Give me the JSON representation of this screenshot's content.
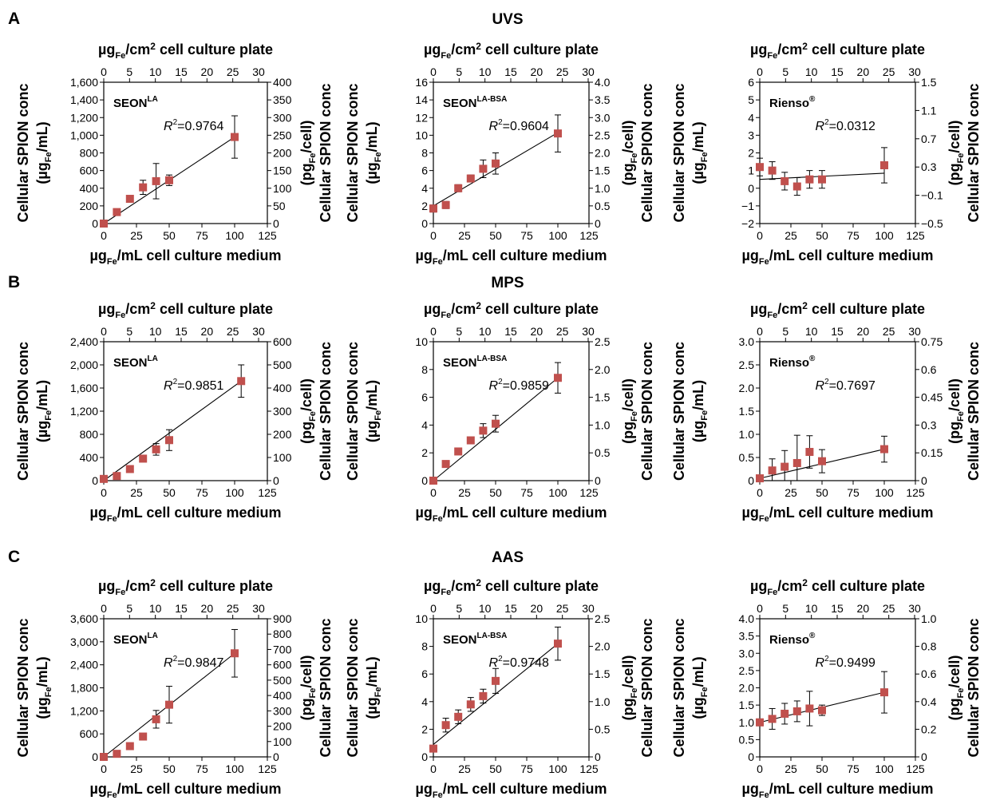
{
  "chart_data": [
    {
      "row": 0,
      "col": 0,
      "type": "scatter",
      "panel_letter": "A",
      "row_title": "UVS",
      "label_main": "SEON",
      "label_sup": "LA",
      "r2_label": "R",
      "r2_value": "=0.9764",
      "xlim": [
        0,
        125
      ],
      "xticks": [
        0,
        25,
        50,
        75,
        100,
        125
      ],
      "xtick_labels": [
        "0",
        "25",
        "50",
        "75",
        "100",
        "125"
      ],
      "ylim": [
        0,
        1600
      ],
      "yticks": [
        0,
        200,
        400,
        600,
        800,
        1000,
        1200,
        1400,
        1600
      ],
      "ytick_labels": [
        "0",
        "200",
        "400",
        "600",
        "800",
        "1,000",
        "1,200",
        "1,400",
        "1,600"
      ],
      "top_ticks": [
        "0",
        "5",
        "10",
        "15",
        "20",
        "25",
        "30"
      ],
      "right_ticks": [
        "0",
        "50",
        "100",
        "150",
        "200",
        "250",
        "300",
        "350",
        "400"
      ],
      "trend": [
        [
          0,
          0
        ],
        [
          100,
          980
        ]
      ],
      "points": [
        {
          "x": 0,
          "y": 0,
          "err": 0
        },
        {
          "x": 10,
          "y": 130,
          "err": 0
        },
        {
          "x": 20,
          "y": 280,
          "err": 20
        },
        {
          "x": 30,
          "y": 410,
          "err": 80
        },
        {
          "x": 40,
          "y": 480,
          "err": 200
        },
        {
          "x": 50,
          "y": 490,
          "err": 60
        },
        {
          "x": 100,
          "y": 980,
          "err": 240
        }
      ]
    },
    {
      "row": 0,
      "col": 1,
      "type": "scatter",
      "label_main": "SEON",
      "label_sup": "LA-BSA",
      "r2_label": "R",
      "r2_value": "=0.9604",
      "xlim": [
        0,
        125
      ],
      "xticks": [
        0,
        25,
        50,
        75,
        100,
        125
      ],
      "xtick_labels": [
        "0",
        "25",
        "50",
        "75",
        "100",
        "125"
      ],
      "ylim": [
        0,
        16
      ],
      "yticks": [
        0,
        2,
        4,
        6,
        8,
        10,
        12,
        14,
        16
      ],
      "ytick_labels": [
        "0",
        "2",
        "4",
        "6",
        "8",
        "10",
        "12",
        "14",
        "16"
      ],
      "top_ticks": [
        "0",
        "5",
        "10",
        "15",
        "20",
        "25",
        "30"
      ],
      "right_ticks": [
        "0",
        "0.5",
        "1.0",
        "1.5",
        "2.0",
        "2.5",
        "3.0",
        "3.5",
        "4.0"
      ],
      "trend": [
        [
          0,
          2.0
        ],
        [
          100,
          10.3
        ]
      ],
      "points": [
        {
          "x": 0,
          "y": 1.7,
          "err": 0.4
        },
        {
          "x": 10,
          "y": 2.1,
          "err": 0.4
        },
        {
          "x": 20,
          "y": 4.0,
          "err": 0.4
        },
        {
          "x": 30,
          "y": 5.1,
          "err": 0.4
        },
        {
          "x": 40,
          "y": 6.2,
          "err": 1.0
        },
        {
          "x": 50,
          "y": 6.8,
          "err": 1.2
        },
        {
          "x": 100,
          "y": 10.2,
          "err": 2.1
        }
      ]
    },
    {
      "row": 0,
      "col": 2,
      "type": "scatter",
      "label_main": "Rienso",
      "label_sup": "®",
      "r2_label": "R",
      "r2_value": "=0.0312",
      "xlim": [
        0,
        125
      ],
      "xticks": [
        0,
        25,
        50,
        75,
        100,
        125
      ],
      "xtick_labels": [
        "0",
        "25",
        "50",
        "75",
        "100",
        "125"
      ],
      "ylim": [
        -2,
        6
      ],
      "yticks": [
        -2,
        -1,
        0,
        1,
        2,
        3,
        4,
        5,
        6
      ],
      "ytick_labels": [
        "−2",
        "−1",
        "0",
        "1",
        "2",
        "3",
        "4",
        "5",
        "6"
      ],
      "top_ticks": [
        "0",
        "5",
        "10",
        "15",
        "20",
        "25",
        "30"
      ],
      "right_ticks": [
        "−0.5",
        "−0.1",
        "0.3",
        "0.7",
        "1.1",
        "1.5"
      ],
      "trend": [
        [
          0,
          0.5
        ],
        [
          100,
          0.85
        ]
      ],
      "points": [
        {
          "x": 0,
          "y": 1.2,
          "err": 0.5
        },
        {
          "x": 10,
          "y": 1.0,
          "err": 0.5
        },
        {
          "x": 20,
          "y": 0.4,
          "err": 0.5
        },
        {
          "x": 30,
          "y": 0.1,
          "err": 0.5
        },
        {
          "x": 40,
          "y": 0.5,
          "err": 0.5
        },
        {
          "x": 50,
          "y": 0.5,
          "err": 0.5
        },
        {
          "x": 100,
          "y": 1.3,
          "err": 1.0
        }
      ]
    },
    {
      "row": 1,
      "col": 0,
      "type": "scatter",
      "panel_letter": "B",
      "row_title": "MPS",
      "label_main": "SEON",
      "label_sup": "LA",
      "r2_label": "R",
      "r2_value": "=0.9851",
      "xlim": [
        0,
        125
      ],
      "xticks": [
        0,
        25,
        50,
        75,
        100,
        125
      ],
      "xtick_labels": [
        "0",
        "25",
        "50",
        "75",
        "100",
        "125"
      ],
      "ylim": [
        0,
        2400
      ],
      "yticks": [
        0,
        400,
        800,
        1200,
        1600,
        2000,
        2400
      ],
      "ytick_labels": [
        "0",
        "400",
        "800",
        "1,200",
        "1,600",
        "2,000",
        "2,400"
      ],
      "top_ticks": [
        "0",
        "5",
        "10",
        "15",
        "20",
        "25",
        "30"
      ],
      "right_ticks": [
        "0",
        "100",
        "200",
        "300",
        "400",
        "500",
        "600"
      ],
      "trend": [
        [
          0,
          0
        ],
        [
          105,
          1720
        ]
      ],
      "points": [
        {
          "x": 0,
          "y": 30,
          "err": 0
        },
        {
          "x": 10,
          "y": 80,
          "err": 0
        },
        {
          "x": 20,
          "y": 200,
          "err": 0
        },
        {
          "x": 30,
          "y": 380,
          "err": 40
        },
        {
          "x": 40,
          "y": 540,
          "err": 100
        },
        {
          "x": 50,
          "y": 700,
          "err": 180
        },
        {
          "x": 105,
          "y": 1720,
          "err": 280
        }
      ]
    },
    {
      "row": 1,
      "col": 1,
      "type": "scatter",
      "label_main": "SEON",
      "label_sup": "LA-BSA",
      "r2_label": "R",
      "r2_value": "=0.9859",
      "xlim": [
        0,
        125
      ],
      "xticks": [
        0,
        25,
        50,
        75,
        100,
        125
      ],
      "xtick_labels": [
        "0",
        "25",
        "50",
        "75",
        "100",
        "125"
      ],
      "ylim": [
        0,
        10
      ],
      "yticks": [
        0,
        2,
        4,
        6,
        8,
        10
      ],
      "ytick_labels": [
        "0",
        "2",
        "4",
        "6",
        "8",
        "10"
      ],
      "top_ticks": [
        "0",
        "5",
        "10",
        "15",
        "20",
        "25",
        "30"
      ],
      "right_ticks": [
        "0",
        "0.5",
        "1.0",
        "1.5",
        "2.0",
        "2.5"
      ],
      "trend": [
        [
          0,
          0
        ],
        [
          100,
          7.4
        ]
      ],
      "points": [
        {
          "x": 0,
          "y": 0,
          "err": 0
        },
        {
          "x": 10,
          "y": 1.2,
          "err": 0.1
        },
        {
          "x": 20,
          "y": 2.1,
          "err": 0.1
        },
        {
          "x": 30,
          "y": 2.9,
          "err": 0.2
        },
        {
          "x": 40,
          "y": 3.6,
          "err": 0.5
        },
        {
          "x": 50,
          "y": 4.1,
          "err": 0.6
        },
        {
          "x": 100,
          "y": 7.4,
          "err": 1.1
        }
      ]
    },
    {
      "row": 1,
      "col": 2,
      "type": "scatter",
      "label_main": "Rienso",
      "label_sup": "®",
      "r2_label": "R",
      "r2_value": "=0.7697",
      "xlim": [
        0,
        125
      ],
      "xticks": [
        0,
        25,
        50,
        75,
        100,
        125
      ],
      "xtick_labels": [
        "0",
        "25",
        "50",
        "75",
        "100",
        "125"
      ],
      "ylim": [
        0,
        3.0
      ],
      "yticks": [
        0,
        0.5,
        1.0,
        1.5,
        2.0,
        2.5,
        3.0
      ],
      "ytick_labels": [
        "0",
        "0.5",
        "1.0",
        "1.5",
        "2.0",
        "2.5",
        "3.0"
      ],
      "top_ticks": [
        "0",
        "5",
        "10",
        "15",
        "20",
        "25",
        "30"
      ],
      "right_ticks": [
        "0",
        "0.15",
        "0.3",
        "0.45",
        "0.6",
        "0.75"
      ],
      "trend": [
        [
          0,
          0.05
        ],
        [
          100,
          0.68
        ]
      ],
      "points": [
        {
          "x": 0,
          "y": 0.05,
          "err": 0.05
        },
        {
          "x": 10,
          "y": 0.22,
          "err": 0.25
        },
        {
          "x": 20,
          "y": 0.3,
          "err": 0.35
        },
        {
          "x": 30,
          "y": 0.38,
          "err": 0.6
        },
        {
          "x": 40,
          "y": 0.62,
          "err": 0.35
        },
        {
          "x": 50,
          "y": 0.42,
          "err": 0.25
        },
        {
          "x": 100,
          "y": 0.68,
          "err": 0.28
        }
      ]
    },
    {
      "row": 2,
      "col": 0,
      "type": "scatter",
      "panel_letter": "C",
      "row_title": "AAS",
      "label_main": "SEON",
      "label_sup": "LA",
      "r2_label": "R",
      "r2_value": "=0.9847",
      "xlim": [
        0,
        125
      ],
      "xticks": [
        0,
        25,
        50,
        75,
        100,
        125
      ],
      "xtick_labels": [
        "0",
        "25",
        "50",
        "75",
        "100",
        "125"
      ],
      "ylim": [
        0,
        3600
      ],
      "yticks": [
        0,
        600,
        1200,
        1800,
        2400,
        3000,
        3600
      ],
      "ytick_labels": [
        "0",
        "600",
        "1,200",
        "1,800",
        "2,400",
        "3,000",
        "3,600"
      ],
      "top_ticks": [
        "0",
        "5",
        "10",
        "15",
        "20",
        "25",
        "30"
      ],
      "right_ticks": [
        "0",
        "100",
        "200",
        "300",
        "400",
        "500",
        "600",
        "700",
        "800",
        "900"
      ],
      "trend": [
        [
          0,
          0
        ],
        [
          100,
          2700
        ]
      ],
      "points": [
        {
          "x": 0,
          "y": 0,
          "err": 0
        },
        {
          "x": 10,
          "y": 80,
          "err": 0
        },
        {
          "x": 20,
          "y": 280,
          "err": 40
        },
        {
          "x": 30,
          "y": 530,
          "err": 80
        },
        {
          "x": 40,
          "y": 980,
          "err": 230
        },
        {
          "x": 50,
          "y": 1360,
          "err": 480
        },
        {
          "x": 100,
          "y": 2700,
          "err": 620
        }
      ]
    },
    {
      "row": 2,
      "col": 1,
      "type": "scatter",
      "label_main": "SEON",
      "label_sup": "LA-BSA",
      "r2_label": "R",
      "r2_value": "=0.9748",
      "xlim": [
        0,
        125
      ],
      "xticks": [
        0,
        25,
        50,
        75,
        100,
        125
      ],
      "xtick_labels": [
        "0",
        "25",
        "50",
        "75",
        "100",
        "125"
      ],
      "ylim": [
        0,
        10
      ],
      "yticks": [
        0,
        2,
        4,
        6,
        8,
        10
      ],
      "ytick_labels": [
        "0",
        "2",
        "4",
        "6",
        "8",
        "10"
      ],
      "top_ticks": [
        "0",
        "5",
        "10",
        "15",
        "20",
        "25",
        "30"
      ],
      "right_ticks": [
        "0",
        "0.5",
        "1.0",
        "1.5",
        "2.0",
        "2.5"
      ],
      "trend": [
        [
          0,
          0.9
        ],
        [
          100,
          8.2
        ]
      ],
      "points": [
        {
          "x": 0,
          "y": 0.6,
          "err": 0
        },
        {
          "x": 10,
          "y": 2.3,
          "err": 0.5
        },
        {
          "x": 20,
          "y": 2.9,
          "err": 0.5
        },
        {
          "x": 30,
          "y": 3.8,
          "err": 0.5
        },
        {
          "x": 40,
          "y": 4.4,
          "err": 0.5
        },
        {
          "x": 50,
          "y": 5.5,
          "err": 0.9
        },
        {
          "x": 100,
          "y": 8.2,
          "err": 1.2
        }
      ]
    },
    {
      "row": 2,
      "col": 2,
      "type": "scatter",
      "label_main": "Rienso",
      "label_sup": "®",
      "r2_label": "R",
      "r2_value": "=0.9499",
      "xlim": [
        0,
        125
      ],
      "xticks": [
        0,
        25,
        50,
        75,
        100,
        125
      ],
      "xtick_labels": [
        "0",
        "25",
        "50",
        "75",
        "100",
        "125"
      ],
      "ylim": [
        0,
        4.0
      ],
      "yticks": [
        0,
        0.5,
        1.0,
        1.5,
        2.0,
        2.5,
        3.0,
        3.5,
        4.0
      ],
      "ytick_labels": [
        "0",
        "0.5",
        "1.0",
        "1.5",
        "2.0",
        "2.5",
        "3.0",
        "3.5",
        "4.0"
      ],
      "top_ticks": [
        "0",
        "5",
        "10",
        "15",
        "20",
        "25",
        "30"
      ],
      "right_ticks": [
        "0",
        "0.2",
        "0.4",
        "0.6",
        "0.8",
        "1.0"
      ],
      "trend": [
        [
          0,
          1.0
        ],
        [
          100,
          1.87
        ]
      ],
      "points": [
        {
          "x": 0,
          "y": 1.0,
          "err": 0.1
        },
        {
          "x": 10,
          "y": 1.1,
          "err": 0.3
        },
        {
          "x": 20,
          "y": 1.25,
          "err": 0.3
        },
        {
          "x": 30,
          "y": 1.32,
          "err": 0.3
        },
        {
          "x": 40,
          "y": 1.4,
          "err": 0.5
        },
        {
          "x": 50,
          "y": 1.35,
          "err": 0.15
        },
        {
          "x": 100,
          "y": 1.87,
          "err": 0.6
        }
      ]
    }
  ],
  "axis_labels": {
    "top_main": "µg",
    "top_sub": "Fe",
    "top_rest": "/cm",
    "top_sup": "2",
    "top_end": " cell culture plate",
    "bottom_main": "µg",
    "bottom_sub": "Fe",
    "bottom_rest": "/mL cell culture medium",
    "left_line1": "Cellular SPION conc",
    "left_line2_open": "(µg",
    "left_line2_sub": "Fe",
    "left_line2_close": "/mL)",
    "right_line1": "Cellular SPION conc",
    "right_line2_open": "(pg",
    "right_line2_sub": "Fe",
    "right_line2_close": "/cell)"
  },
  "colors": {
    "marker": "#c0504d",
    "line": "#000000",
    "axis": "#000000"
  }
}
